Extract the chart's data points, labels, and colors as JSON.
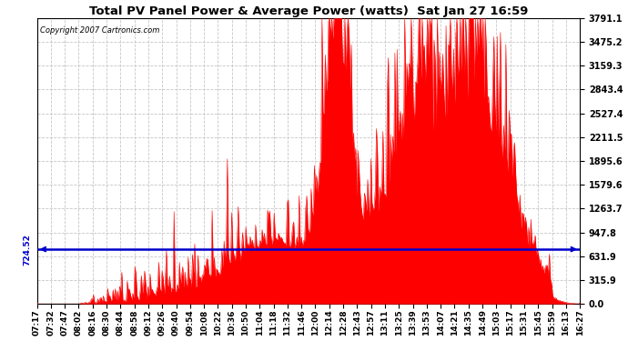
{
  "title": "Total PV Panel Power & Average Power (watts)  Sat Jan 27 16:59",
  "copyright": "Copyright 2007 Cartronics.com",
  "avg_power": 724.52,
  "y_max": 3791.1,
  "y_ticks": [
    0.0,
    315.9,
    631.9,
    947.8,
    1263.7,
    1579.6,
    1895.6,
    2211.5,
    2527.4,
    2843.4,
    3159.3,
    3475.2,
    3791.1
  ],
  "x_tick_labels": [
    "07:17",
    "07:32",
    "07:47",
    "08:02",
    "08:16",
    "08:30",
    "08:44",
    "08:58",
    "09:12",
    "09:26",
    "09:40",
    "09:54",
    "10:08",
    "10:22",
    "10:36",
    "10:50",
    "11:04",
    "11:18",
    "11:32",
    "11:46",
    "12:00",
    "12:14",
    "12:28",
    "12:43",
    "12:57",
    "13:11",
    "13:25",
    "13:39",
    "13:53",
    "14:07",
    "14:21",
    "14:35",
    "14:49",
    "15:03",
    "15:17",
    "15:31",
    "15:45",
    "15:59",
    "16:13",
    "16:27"
  ],
  "background_color": "#ffffff",
  "plot_bg_color": "#ffffff",
  "bar_color": "#ff0000",
  "avg_line_color": "#0000cc",
  "grid_color": "#c0c0c0",
  "title_color": "#000000",
  "border_color": "#000000"
}
